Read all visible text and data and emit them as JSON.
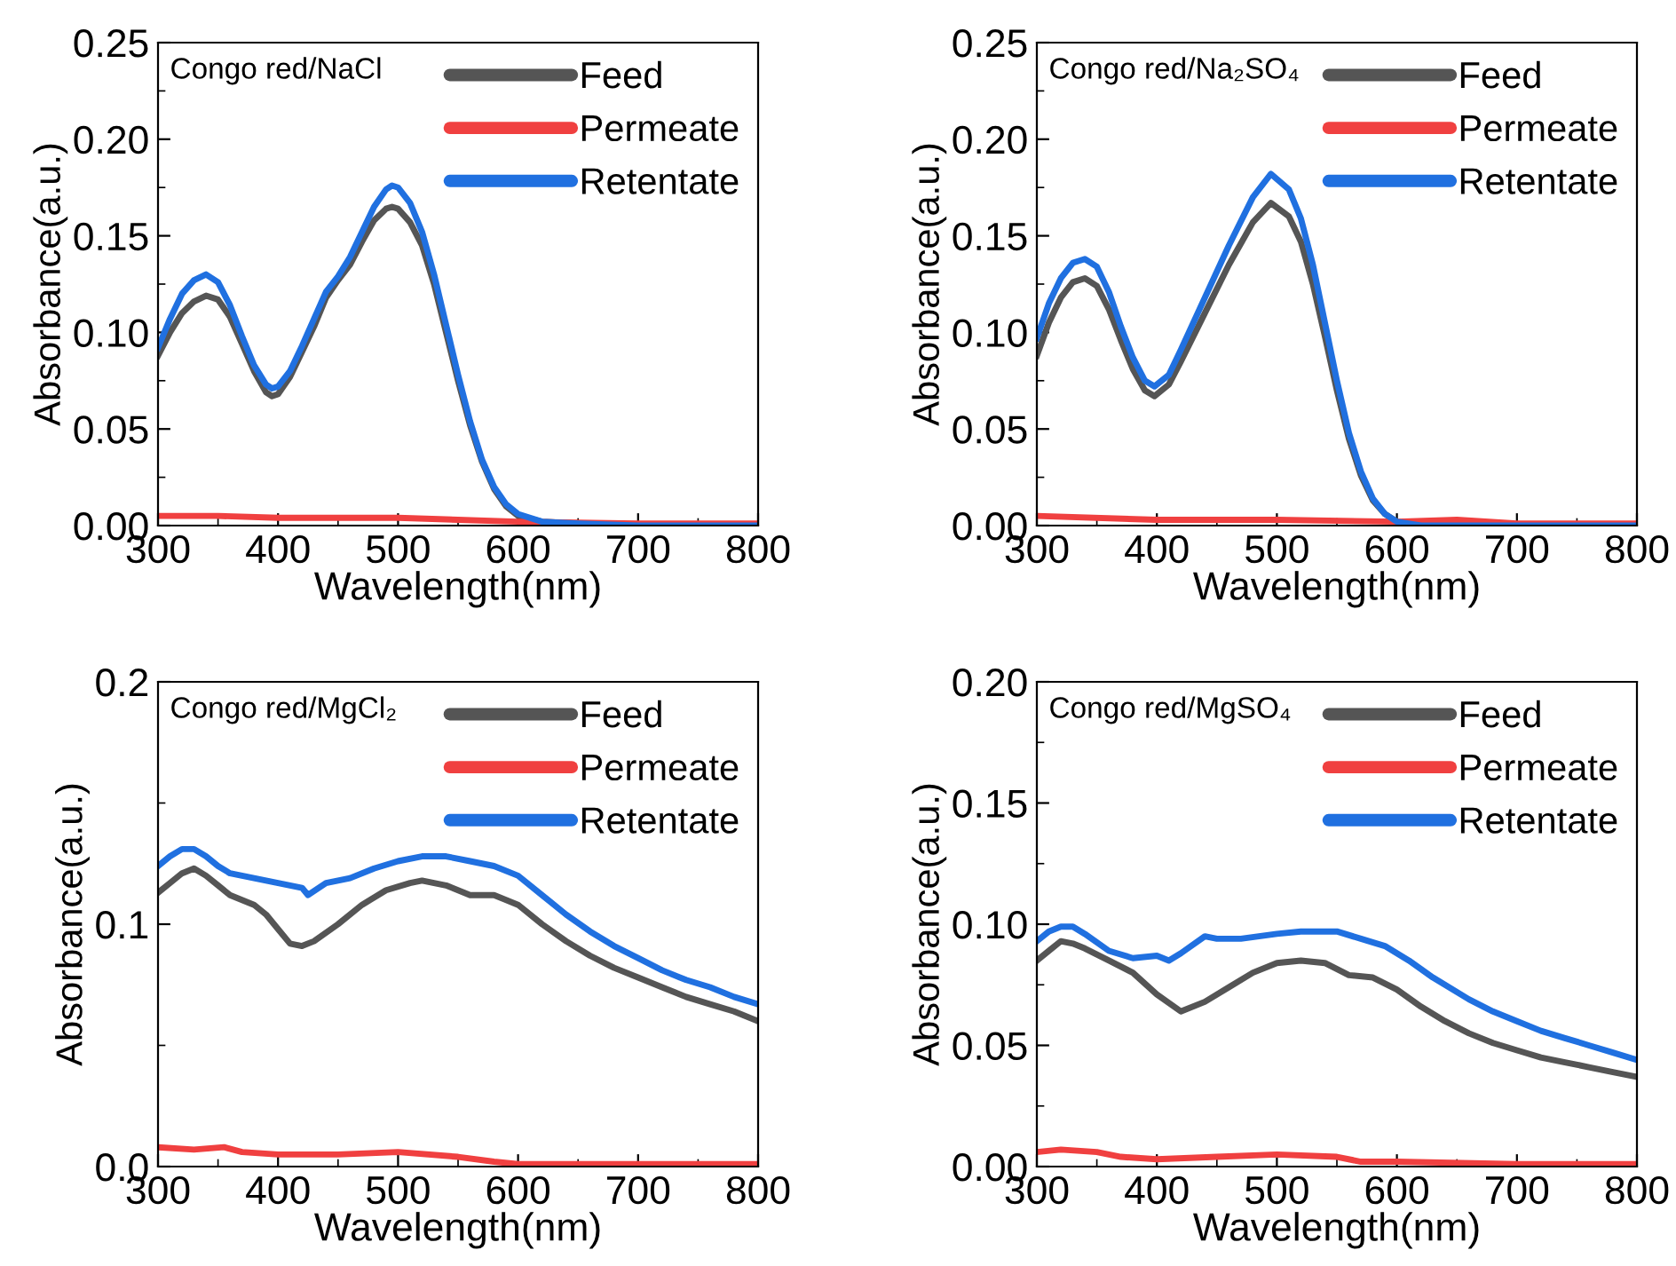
{
  "chart_data": [
    {
      "type": "line",
      "annotations": [
        "Congo red/NaCl"
      ],
      "xlabel": "Wavelength(nm)",
      "ylabel": "Absorbance(a.u.)",
      "xlim": [
        300,
        800
      ],
      "xticks": [
        300,
        400,
        500,
        600,
        700,
        800
      ],
      "ylim": [
        0,
        0.25
      ],
      "yticks": [
        {
          "value": 0,
          "label": "0.00"
        },
        0.05,
        {
          "value": 0.1,
          "label": "0.10"
        },
        0.15,
        {
          "value": 0.2,
          "label": "0.20"
        },
        0.25
      ],
      "legend": "top right",
      "series": [
        {
          "name": "Feed",
          "color": "#555555",
          "x": [
            300,
            310,
            320,
            330,
            340,
            350,
            360,
            370,
            380,
            390,
            395,
            400,
            410,
            420,
            430,
            440,
            450,
            460,
            470,
            480,
            490,
            495,
            500,
            510,
            520,
            530,
            540,
            550,
            560,
            570,
            580,
            590,
            600,
            620,
            650,
            700,
            800
          ],
          "values": [
            0.088,
            0.1,
            0.11,
            0.116,
            0.119,
            0.117,
            0.108,
            0.094,
            0.08,
            0.069,
            0.067,
            0.068,
            0.077,
            0.09,
            0.103,
            0.118,
            0.127,
            0.135,
            0.147,
            0.158,
            0.164,
            0.165,
            0.164,
            0.157,
            0.145,
            0.125,
            0.1,
            0.075,
            0.052,
            0.033,
            0.019,
            0.01,
            0.005,
            0.002,
            0.001,
            0,
            0
          ]
        },
        {
          "name": "Permeate",
          "color": "#f04040",
          "x": [
            300,
            350,
            400,
            500,
            550,
            600,
            700,
            800
          ],
          "values": [
            0.005,
            0.005,
            0.004,
            0.004,
            0.003,
            0.002,
            0.001,
            0.001
          ]
        },
        {
          "name": "Retentate",
          "color": "#2070e0",
          "x": [
            300,
            310,
            320,
            330,
            340,
            350,
            360,
            370,
            380,
            390,
            395,
            400,
            410,
            420,
            430,
            440,
            450,
            460,
            470,
            480,
            490,
            495,
            500,
            510,
            520,
            530,
            540,
            550,
            560,
            570,
            580,
            590,
            600,
            620,
            650,
            700,
            800
          ],
          "values": [
            0.092,
            0.107,
            0.12,
            0.127,
            0.13,
            0.126,
            0.114,
            0.098,
            0.083,
            0.073,
            0.071,
            0.072,
            0.08,
            0.093,
            0.107,
            0.121,
            0.129,
            0.139,
            0.152,
            0.165,
            0.174,
            0.176,
            0.175,
            0.167,
            0.152,
            0.13,
            0.104,
            0.078,
            0.054,
            0.034,
            0.02,
            0.011,
            0.006,
            0.002,
            0.001,
            0,
            0
          ]
        }
      ]
    },
    {
      "type": "line",
      "annotations": [
        "Congo red/Na₂SO₄"
      ],
      "xlabel": "Wavelength(nm)",
      "ylabel": "Absorbance(a.u.)",
      "xlim": [
        300,
        800
      ],
      "xticks": [
        300,
        400,
        500,
        600,
        700,
        800
      ],
      "ylim": [
        0,
        0.25
      ],
      "yticks": [
        {
          "value": 0,
          "label": "0.00"
        },
        0.05,
        {
          "value": 0.1,
          "label": "0.10"
        },
        0.15,
        {
          "value": 0.2,
          "label": "0.20"
        },
        0.25
      ],
      "legend": "top right",
      "series": [
        {
          "name": "Feed",
          "color": "#555555",
          "x": [
            300,
            310,
            320,
            330,
            340,
            350,
            360,
            370,
            380,
            390,
            398,
            410,
            420,
            440,
            460,
            480,
            495,
            510,
            520,
            530,
            540,
            550,
            560,
            570,
            580,
            590,
            600,
            620,
            700,
            800
          ],
          "values": [
            0.088,
            0.105,
            0.118,
            0.126,
            0.128,
            0.124,
            0.112,
            0.096,
            0.081,
            0.07,
            0.067,
            0.073,
            0.085,
            0.11,
            0.135,
            0.157,
            0.167,
            0.16,
            0.147,
            0.125,
            0.098,
            0.07,
            0.045,
            0.026,
            0.013,
            0.006,
            0.002,
            0,
            0,
            0
          ]
        },
        {
          "name": "Permeate",
          "color": "#f04040",
          "x": [
            300,
            400,
            500,
            600,
            650,
            700,
            800
          ],
          "values": [
            0.005,
            0.003,
            0.003,
            0.002,
            0.003,
            0.001,
            0.001
          ]
        },
        {
          "name": "Retentate",
          "color": "#2070e0",
          "x": [
            300,
            310,
            320,
            330,
            340,
            350,
            360,
            370,
            380,
            390,
            398,
            410,
            420,
            440,
            460,
            480,
            495,
            510,
            520,
            530,
            540,
            550,
            560,
            570,
            580,
            590,
            600,
            620,
            700,
            800
          ],
          "values": [
            0.097,
            0.115,
            0.128,
            0.136,
            0.138,
            0.134,
            0.121,
            0.103,
            0.087,
            0.075,
            0.072,
            0.078,
            0.091,
            0.118,
            0.145,
            0.17,
            0.182,
            0.174,
            0.159,
            0.135,
            0.105,
            0.075,
            0.048,
            0.028,
            0.014,
            0.006,
            0.002,
            0,
            0,
            0
          ]
        }
      ]
    },
    {
      "type": "line",
      "annotations": [
        "Congo red/MgCl₂"
      ],
      "xlabel": "Wavelength(nm)",
      "ylabel": "Absorbance(a.u.)",
      "xlim": [
        300,
        800
      ],
      "xticks": [
        300,
        400,
        500,
        600,
        700,
        800
      ],
      "ylim": [
        0,
        0.2
      ],
      "yticks": [
        {
          "value": 0,
          "label": "0.0"
        },
        0.1,
        0.2
      ],
      "legend": "top right",
      "series": [
        {
          "name": "Feed",
          "color": "#555555",
          "x": [
            300,
            310,
            320,
            330,
            340,
            350,
            360,
            370,
            380,
            390,
            400,
            410,
            420,
            430,
            450,
            470,
            490,
            510,
            520,
            540,
            560,
            580,
            600,
            620,
            640,
            660,
            680,
            700,
            720,
            740,
            760,
            780,
            800
          ],
          "values": [
            0.113,
            0.117,
            0.121,
            0.123,
            0.12,
            0.116,
            0.112,
            0.11,
            0.108,
            0.104,
            0.098,
            0.092,
            0.091,
            0.093,
            0.1,
            0.108,
            0.114,
            0.117,
            0.118,
            0.116,
            0.112,
            0.112,
            0.108,
            0.1,
            0.093,
            0.087,
            0.082,
            0.078,
            0.074,
            0.07,
            0.067,
            0.064,
            0.06
          ]
        },
        {
          "name": "Permeate",
          "color": "#f04040",
          "x": [
            300,
            330,
            355,
            370,
            400,
            450,
            500,
            550,
            580,
            600,
            700,
            800
          ],
          "values": [
            0.008,
            0.007,
            0.008,
            0.006,
            0.005,
            0.005,
            0.006,
            0.004,
            0.002,
            0.001,
            0.001,
            0.001
          ]
        },
        {
          "name": "Retentate",
          "color": "#2070e0",
          "x": [
            300,
            310,
            320,
            330,
            340,
            350,
            360,
            380,
            400,
            420,
            425,
            440,
            460,
            480,
            500,
            520,
            540,
            560,
            580,
            600,
            620,
            640,
            660,
            680,
            700,
            720,
            740,
            760,
            780,
            800
          ],
          "values": [
            0.124,
            0.128,
            0.131,
            0.131,
            0.128,
            0.124,
            0.121,
            0.119,
            0.117,
            0.115,
            0.112,
            0.117,
            0.119,
            0.123,
            0.126,
            0.128,
            0.128,
            0.126,
            0.124,
            0.12,
            0.112,
            0.104,
            0.097,
            0.091,
            0.086,
            0.081,
            0.077,
            0.074,
            0.07,
            0.067
          ]
        }
      ]
    },
    {
      "type": "line",
      "annotations": [
        "Congo red/MgSO₄"
      ],
      "xlabel": "Wavelength(nm)",
      "ylabel": "Absorbance(a.u.)",
      "xlim": [
        300,
        800
      ],
      "xticks": [
        300,
        400,
        500,
        600,
        700,
        800
      ],
      "ylim": [
        0,
        0.2
      ],
      "yticks": [
        {
          "value": 0,
          "label": "0.00"
        },
        0.05,
        {
          "value": 0.1,
          "label": "0.10"
        },
        0.15,
        {
          "value": 0.2,
          "label": "0.20"
        }
      ],
      "legend": "top right",
      "series": [
        {
          "name": "Feed",
          "color": "#555555",
          "x": [
            300,
            310,
            320,
            330,
            340,
            360,
            380,
            400,
            420,
            440,
            460,
            480,
            500,
            520,
            540,
            560,
            580,
            600,
            620,
            640,
            660,
            680,
            700,
            720,
            740,
            760,
            780,
            800
          ],
          "values": [
            0.085,
            0.089,
            0.093,
            0.092,
            0.09,
            0.085,
            0.08,
            0.071,
            0.064,
            0.068,
            0.074,
            0.08,
            0.084,
            0.085,
            0.084,
            0.079,
            0.078,
            0.073,
            0.066,
            0.06,
            0.055,
            0.051,
            0.048,
            0.045,
            0.043,
            0.041,
            0.039,
            0.037
          ]
        },
        {
          "name": "Permeate",
          "color": "#f04040",
          "x": [
            300,
            320,
            350,
            370,
            400,
            450,
            500,
            550,
            570,
            600,
            700,
            800
          ],
          "values": [
            0.006,
            0.007,
            0.006,
            0.004,
            0.003,
            0.004,
            0.005,
            0.004,
            0.002,
            0.002,
            0.001,
            0.001
          ]
        },
        {
          "name": "Retentate",
          "color": "#2070e0",
          "x": [
            300,
            310,
            320,
            330,
            340,
            360,
            380,
            400,
            410,
            420,
            440,
            450,
            470,
            500,
            520,
            550,
            570,
            590,
            610,
            630,
            660,
            680,
            700,
            720,
            740,
            760,
            780,
            800
          ],
          "values": [
            0.093,
            0.097,
            0.099,
            0.099,
            0.096,
            0.089,
            0.086,
            0.087,
            0.085,
            0.088,
            0.095,
            0.094,
            0.094,
            0.096,
            0.097,
            0.097,
            0.094,
            0.091,
            0.085,
            0.078,
            0.069,
            0.064,
            0.06,
            0.056,
            0.053,
            0.05,
            0.047,
            0.044
          ]
        }
      ]
    }
  ]
}
